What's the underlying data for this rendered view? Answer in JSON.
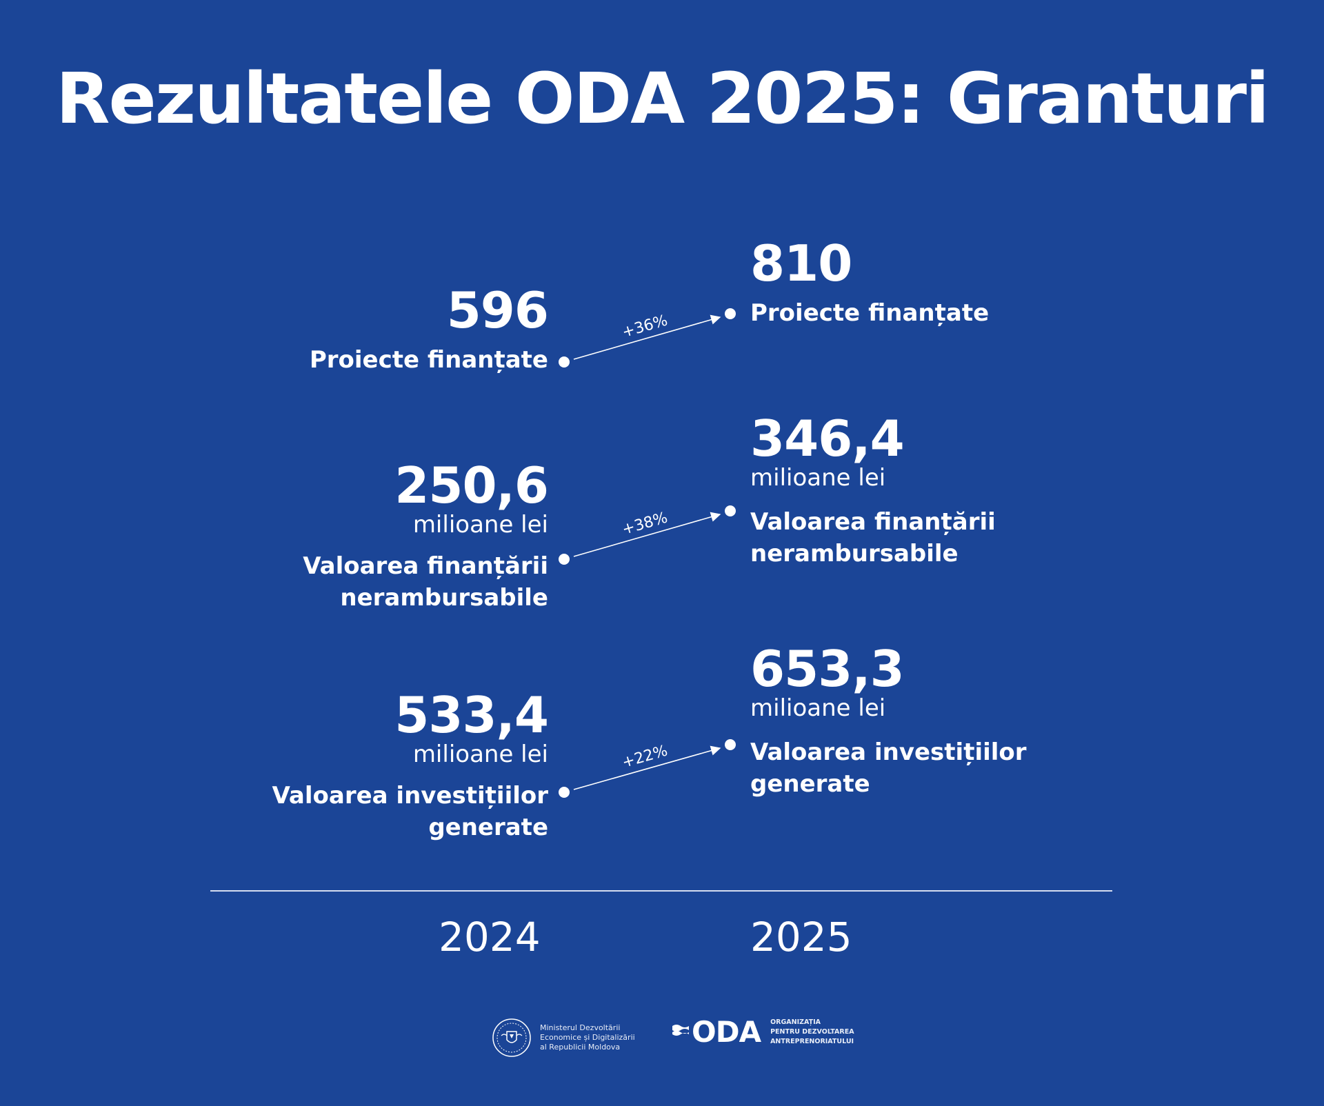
{
  "title": "Rezultatele ODA 2025: Granturi",
  "colors": {
    "background": "#1B4597",
    "text": "#ffffff"
  },
  "rows": [
    {
      "left": {
        "value": "596",
        "unit": "",
        "label_lines": [
          "Proiecte finanțate"
        ]
      },
      "right": {
        "value": "810",
        "unit": "",
        "label_lines": [
          "Proiecte finanțate"
        ]
      },
      "change": "+36%"
    },
    {
      "left": {
        "value": "250,6",
        "unit": "milioane lei",
        "label_lines": [
          "Valoarea finanțării",
          "nerambursabile"
        ]
      },
      "right": {
        "value": "346,4",
        "unit": "milioane lei",
        "label_lines": [
          "Valoarea finanțării",
          "nerambursabile"
        ]
      },
      "change": "+38%"
    },
    {
      "left": {
        "value": "533,4",
        "unit": "milioane lei",
        "label_lines": [
          "Valoarea investițiilor",
          "generate"
        ]
      },
      "right": {
        "value": "653,3",
        "unit": "milioane lei",
        "label_lines": [
          "Valoarea investițiilor",
          "generate"
        ]
      },
      "change": "+22%"
    }
  ],
  "years": {
    "left": "2024",
    "right": "2025"
  },
  "footer": {
    "ministry_lines": [
      "Ministerul Dezvoltării",
      "Economice și Digitalizării",
      "al Republicii Moldova"
    ],
    "oda_mark": "ODA",
    "oda_lines": [
      "ORGANIZAȚIA",
      "PENTRU DEZVOLTAREA",
      "ANTREPRENORIATULUI"
    ]
  }
}
